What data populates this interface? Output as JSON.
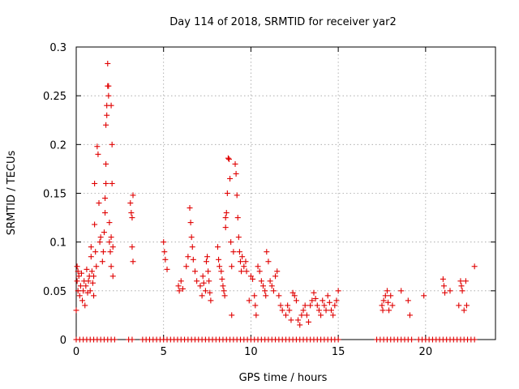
{
  "chart_data": {
    "type": "scatter",
    "title": "Day 114 of 2018, SRMTID for receiver yar2",
    "xlabel": "GPS time / hours",
    "ylabel": "SRMTID / TECUs",
    "xlim": [
      0,
      24
    ],
    "ylim": [
      0,
      0.3
    ],
    "xticks": [
      0,
      5,
      10,
      15,
      20
    ],
    "yticks": [
      0,
      0.05,
      0.1,
      0.15,
      0.2,
      0.25,
      0.3
    ],
    "ytick_labels": [
      "0",
      "0.05",
      "0.1",
      "0.15",
      "0.2",
      "0.25",
      "0.3"
    ],
    "grid": true,
    "marker": "+",
    "color": "#e00000",
    "series": [
      {
        "name": "SRMTID",
        "points": [
          [
            0.0,
            0.03
          ],
          [
            0.05,
            0.06
          ],
          [
            0.05,
            0.075
          ],
          [
            0.1,
            0.07
          ],
          [
            0.1,
            0.05
          ],
          [
            0.15,
            0.065
          ],
          [
            0.2,
            0.045
          ],
          [
            0.25,
            0.055
          ],
          [
            0.3,
            0.068
          ],
          [
            0.35,
            0.04
          ],
          [
            0.4,
            0.05
          ],
          [
            0.45,
            0.06
          ],
          [
            0.5,
            0.035
          ],
          [
            0.55,
            0.055
          ],
          [
            0.6,
            0.072
          ],
          [
            0.65,
            0.048
          ],
          [
            0.7,
            0.06
          ],
          [
            0.75,
            0.065
          ],
          [
            0.8,
            0.05
          ],
          [
            0.85,
            0.085
          ],
          [
            0.85,
            0.095
          ],
          [
            0.9,
            0.07
          ],
          [
            0.95,
            0.058
          ],
          [
            1.0,
            0.045
          ],
          [
            1.0,
            0.065
          ],
          [
            1.05,
            0.118
          ],
          [
            1.05,
            0.16
          ],
          [
            1.1,
            0.09
          ],
          [
            1.15,
            0.075
          ],
          [
            1.2,
            0.198
          ],
          [
            1.25,
            0.19
          ],
          [
            1.3,
            0.14
          ],
          [
            1.35,
            0.1
          ],
          [
            1.4,
            0.105
          ],
          [
            1.5,
            0.08
          ],
          [
            1.55,
            0.09
          ],
          [
            1.6,
            0.11
          ],
          [
            1.65,
            0.13
          ],
          [
            1.65,
            0.145
          ],
          [
            1.7,
            0.16
          ],
          [
            1.7,
            0.18
          ],
          [
            1.7,
            0.22
          ],
          [
            1.75,
            0.23
          ],
          [
            1.75,
            0.24
          ],
          [
            1.8,
            0.26
          ],
          [
            1.8,
            0.283
          ],
          [
            1.85,
            0.26
          ],
          [
            1.85,
            0.25
          ],
          [
            1.9,
            0.12
          ],
          [
            1.9,
            0.1
          ],
          [
            1.95,
            0.09
          ],
          [
            2.0,
            0.105
          ],
          [
            2.0,
            0.075
          ],
          [
            2.0,
            0.24
          ],
          [
            2.05,
            0.2
          ],
          [
            2.05,
            0.16
          ],
          [
            2.1,
            0.065
          ],
          [
            2.1,
            0.095
          ],
          [
            3.1,
            0.14
          ],
          [
            3.15,
            0.13
          ],
          [
            3.2,
            0.125
          ],
          [
            3.2,
            0.095
          ],
          [
            3.25,
            0.08
          ],
          [
            3.25,
            0.148
          ],
          [
            5.0,
            0.1
          ],
          [
            5.05,
            0.09
          ],
          [
            5.1,
            0.082
          ],
          [
            5.2,
            0.072
          ],
          [
            5.85,
            0.055
          ],
          [
            5.9,
            0.05
          ],
          [
            6.0,
            0.06
          ],
          [
            6.1,
            0.052
          ],
          [
            6.3,
            0.075
          ],
          [
            6.4,
            0.085
          ],
          [
            6.5,
            0.135
          ],
          [
            6.55,
            0.12
          ],
          [
            6.6,
            0.105
          ],
          [
            6.65,
            0.095
          ],
          [
            6.7,
            0.082
          ],
          [
            6.8,
            0.07
          ],
          [
            6.9,
            0.06
          ],
          [
            7.1,
            0.055
          ],
          [
            7.2,
            0.045
          ],
          [
            7.25,
            0.065
          ],
          [
            7.3,
            0.058
          ],
          [
            7.4,
            0.05
          ],
          [
            7.45,
            0.08
          ],
          [
            7.5,
            0.085
          ],
          [
            7.55,
            0.07
          ],
          [
            7.6,
            0.06
          ],
          [
            7.65,
            0.048
          ],
          [
            7.7,
            0.04
          ],
          [
            8.1,
            0.095
          ],
          [
            8.15,
            0.082
          ],
          [
            8.2,
            0.075
          ],
          [
            8.3,
            0.07
          ],
          [
            8.35,
            0.062
          ],
          [
            8.4,
            0.055
          ],
          [
            8.45,
            0.05
          ],
          [
            8.5,
            0.045
          ],
          [
            8.55,
            0.115
          ],
          [
            8.55,
            0.125
          ],
          [
            8.6,
            0.13
          ],
          [
            8.65,
            0.15
          ],
          [
            8.7,
            0.186
          ],
          [
            8.75,
            0.185
          ],
          [
            8.8,
            0.165
          ],
          [
            8.85,
            0.1
          ],
          [
            8.9,
            0.025
          ],
          [
            8.9,
            0.075
          ],
          [
            9.0,
            0.09
          ],
          [
            9.1,
            0.18
          ],
          [
            9.15,
            0.17
          ],
          [
            9.2,
            0.148
          ],
          [
            9.25,
            0.125
          ],
          [
            9.3,
            0.105
          ],
          [
            9.35,
            0.09
          ],
          [
            9.4,
            0.08
          ],
          [
            9.45,
            0.07
          ],
          [
            9.5,
            0.085
          ],
          [
            9.6,
            0.075
          ],
          [
            9.7,
            0.08
          ],
          [
            9.75,
            0.07
          ],
          [
            9.9,
            0.04
          ],
          [
            10.0,
            0.065
          ],
          [
            10.1,
            0.062
          ],
          [
            10.2,
            0.045
          ],
          [
            10.25,
            0.035
          ],
          [
            10.3,
            0.025
          ],
          [
            10.4,
            0.075
          ],
          [
            10.5,
            0.07
          ],
          [
            10.6,
            0.06
          ],
          [
            10.7,
            0.055
          ],
          [
            10.8,
            0.05
          ],
          [
            10.85,
            0.045
          ],
          [
            10.9,
            0.09
          ],
          [
            11.0,
            0.08
          ],
          [
            11.1,
            0.06
          ],
          [
            11.2,
            0.055
          ],
          [
            11.3,
            0.05
          ],
          [
            11.4,
            0.065
          ],
          [
            11.5,
            0.07
          ],
          [
            11.6,
            0.045
          ],
          [
            11.7,
            0.035
          ],
          [
            11.8,
            0.03
          ],
          [
            12.0,
            0.025
          ],
          [
            12.1,
            0.035
          ],
          [
            12.2,
            0.03
          ],
          [
            12.3,
            0.02
          ],
          [
            12.4,
            0.048
          ],
          [
            12.5,
            0.045
          ],
          [
            12.6,
            0.04
          ],
          [
            12.7,
            0.02
          ],
          [
            12.8,
            0.015
          ],
          [
            12.9,
            0.025
          ],
          [
            13.0,
            0.03
          ],
          [
            13.1,
            0.035
          ],
          [
            13.2,
            0.025
          ],
          [
            13.3,
            0.018
          ],
          [
            13.4,
            0.035
          ],
          [
            13.5,
            0.04
          ],
          [
            13.6,
            0.048
          ],
          [
            13.7,
            0.042
          ],
          [
            13.8,
            0.035
          ],
          [
            13.9,
            0.03
          ],
          [
            14.0,
            0.025
          ],
          [
            14.1,
            0.04
          ],
          [
            14.2,
            0.035
          ],
          [
            14.3,
            0.03
          ],
          [
            14.4,
            0.045
          ],
          [
            14.5,
            0.038
          ],
          [
            14.6,
            0.03
          ],
          [
            14.7,
            0.025
          ],
          [
            14.8,
            0.035
          ],
          [
            14.9,
            0.04
          ],
          [
            15.0,
            0.05
          ],
          [
            17.5,
            0.035
          ],
          [
            17.55,
            0.03
          ],
          [
            17.6,
            0.04
          ],
          [
            17.7,
            0.045
          ],
          [
            17.8,
            0.05
          ],
          [
            17.85,
            0.038
          ],
          [
            17.9,
            0.03
          ],
          [
            18.0,
            0.045
          ],
          [
            18.1,
            0.035
          ],
          [
            18.6,
            0.05
          ],
          [
            19.0,
            0.04
          ],
          [
            19.1,
            0.025
          ],
          [
            19.9,
            0.045
          ],
          [
            21.0,
            0.062
          ],
          [
            21.05,
            0.055
          ],
          [
            21.1,
            0.048
          ],
          [
            21.4,
            0.05
          ],
          [
            21.9,
            0.035
          ],
          [
            22.0,
            0.06
          ],
          [
            22.05,
            0.055
          ],
          [
            22.1,
            0.05
          ],
          [
            22.2,
            0.03
          ],
          [
            22.3,
            0.06
          ],
          [
            22.35,
            0.035
          ],
          [
            22.8,
            0.075
          ]
        ]
      }
    ],
    "zero_band": [
      [
        0.0,
        2.2
      ],
      [
        3.0,
        3.3
      ],
      [
        3.8,
        15.0
      ],
      [
        17.2,
        19.3
      ],
      [
        19.6,
        22.8
      ]
    ]
  }
}
